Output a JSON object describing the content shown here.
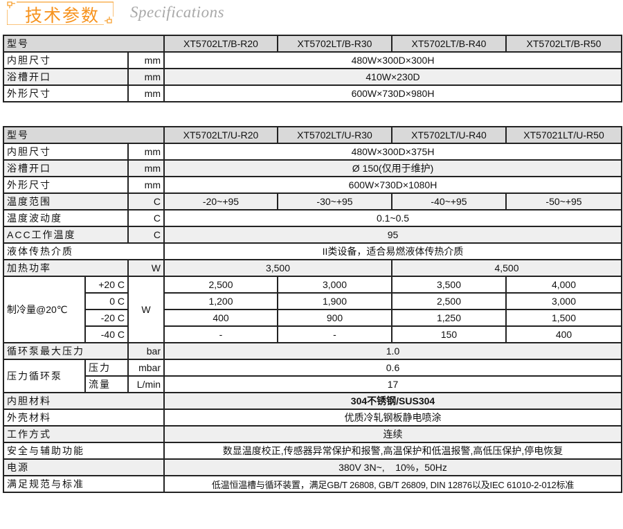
{
  "header": {
    "title_cn": "技术参数",
    "title_en": "Specifications",
    "accent": "#f7931e"
  },
  "table1": {
    "header_label": "型号",
    "models": [
      "XT5702LT/B-R20",
      "XT5702LT/B-R30",
      "XT5702LT/B-R40",
      "XT5702LT/B-R50"
    ],
    "rows": [
      {
        "label": "内胆尺寸",
        "unit": "mm",
        "value": "480W×300D×300H"
      },
      {
        "label": "浴槽开口",
        "unit": "mm",
        "value": "410W×230D"
      },
      {
        "label": "外形尺寸",
        "unit": "mm",
        "value": "600W×730D×980H"
      }
    ]
  },
  "table2": {
    "header_label": "型号",
    "models": [
      "XT5702LT/U-R20",
      "XT5702LT/U-R30",
      "XT5702LT/U-R40",
      "XT57021LT/U-R50"
    ],
    "inner_size": {
      "label": "内胆尺寸",
      "unit": "mm",
      "value": "480W×300D×375H"
    },
    "bath_opening": {
      "label": "浴槽开口",
      "unit": "mm",
      "value": "Ø 150(仅用于维护)"
    },
    "outer_size": {
      "label": "外形尺寸",
      "unit": "mm",
      "value": "600W×730D×1080H"
    },
    "temp_range": {
      "label": "温度范围",
      "unit": "C",
      "values": [
        "-20~+95",
        "-30~+95",
        "-40~+95",
        "-50~+95"
      ]
    },
    "temp_fluct": {
      "label": "温度波动度",
      "unit": "C",
      "value": "0.1~0.5"
    },
    "acc_temp": {
      "label": "ACC工作温度",
      "unit": "C",
      "value": "95"
    },
    "medium": {
      "label": "液体传热介质",
      "value": "II类设备，适合易燃液体传热介质"
    },
    "heating": {
      "label": "加热功率",
      "unit": "W",
      "values": [
        "3,500",
        "4,500"
      ]
    },
    "cooling": {
      "label": "制冷量@20℃",
      "unit": "W",
      "rows": [
        {
          "temp": "+20 C",
          "values": [
            "2,500",
            "3,000",
            "3,500",
            "4,000"
          ]
        },
        {
          "temp": "0 C",
          "values": [
            "1,200",
            "1,900",
            "2,500",
            "3,000"
          ]
        },
        {
          "temp": "-20 C",
          "values": [
            "400",
            "900",
            "1,250",
            "1,500"
          ]
        },
        {
          "temp": "-40 C",
          "values": [
            "-",
            "-",
            "150",
            "400"
          ]
        }
      ]
    },
    "pump_max": {
      "label": "循环泵最大压力",
      "unit": "bar",
      "value": "1.0"
    },
    "pressure_pump": {
      "label": "压力循环泵",
      "pressure_label": "压力",
      "pressure_unit": "mbar",
      "pressure_value": "0.6",
      "flow_label": "流量",
      "flow_unit": "L/min",
      "flow_value": "17"
    },
    "inner_material": {
      "label": "内胆材料",
      "value": "304不锈钢/SUS304"
    },
    "shell_material": {
      "label": "外壳材料",
      "value": "优质冷轧钢板静电喷涂"
    },
    "work_mode": {
      "label": "工作方式",
      "value": "连续"
    },
    "safety": {
      "label": "安全与辅助功能",
      "value": "数显温度校正,传感器异常保护和报警,高温保护和低温报警,高低压保护,停电恢复"
    },
    "power": {
      "label": "电源",
      "value": "380V 3N~,    10%，50Hz"
    },
    "standards": {
      "label": "满足规范与标准",
      "value": "低温恒温槽与循环装置，满足GB/T 26808, GB/T 26809, DIN 12876以及IEC 61010-2-012标准"
    }
  }
}
